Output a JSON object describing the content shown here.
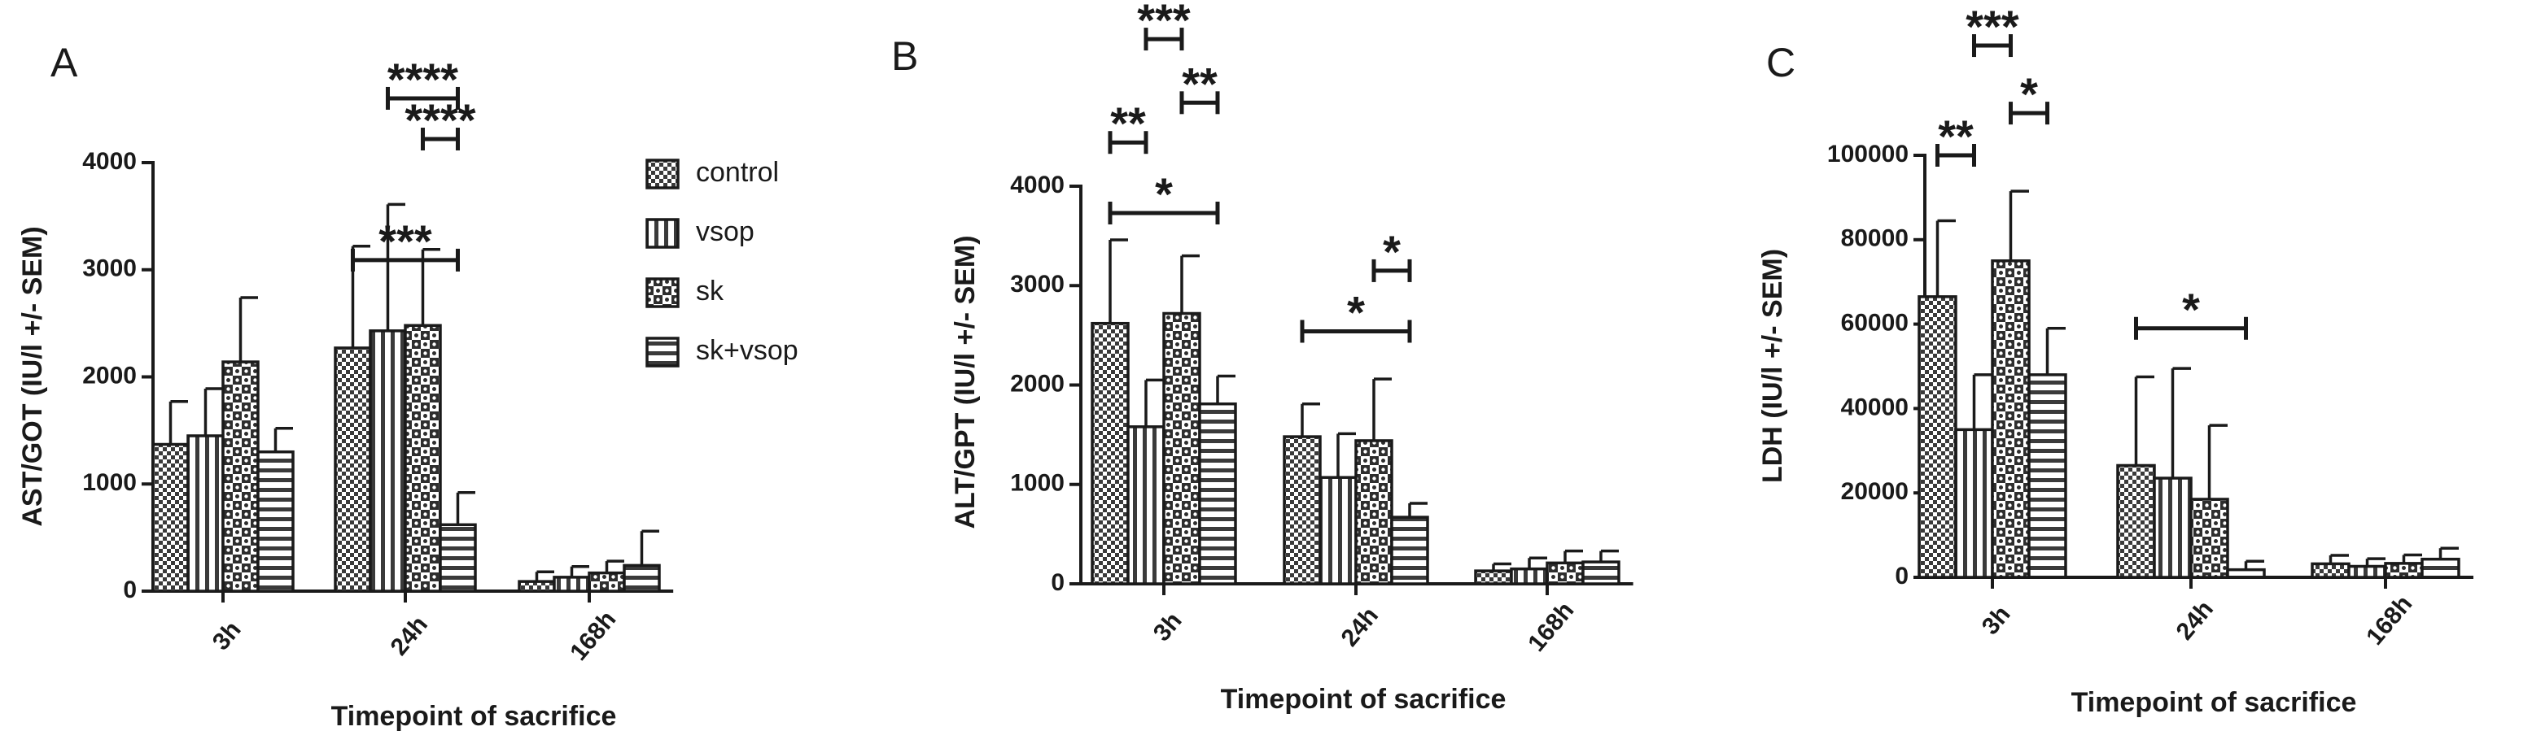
{
  "chart_data": [
    {
      "type": "bar",
      "panel": "A",
      "xlabel": "Timepoint of sacrifice",
      "ylabel": "AST/GOT (IU/l +/- SEM)",
      "ylim": [
        0,
        4000
      ],
      "yticks": [
        0,
        1000,
        2000,
        3000,
        4000
      ],
      "categories": [
        "3h",
        "24h",
        "168h"
      ],
      "series": [
        {
          "name": "control",
          "values": [
            1370,
            2270,
            90
          ],
          "errors": [
            400,
            950,
            90
          ]
        },
        {
          "name": "vsop",
          "values": [
            1450,
            2430,
            130
          ],
          "errors": [
            440,
            1180,
            100
          ]
        },
        {
          "name": "sk",
          "values": [
            2140,
            2480,
            170
          ],
          "errors": [
            600,
            710,
            110
          ]
        },
        {
          "name": "sk+vsop",
          "values": [
            1300,
            620,
            240
          ],
          "errors": [
            220,
            300,
            320
          ]
        }
      ],
      "significance": [
        {
          "from_category": "24h",
          "from_series": 0,
          "to_category": "24h",
          "to_series": 3,
          "label": "***",
          "level": 3090
        },
        {
          "from_category": "24h",
          "from_series": 1,
          "to_category": "24h",
          "to_series": 3,
          "label": "****",
          "level": 4600
        },
        {
          "from_category": "24h",
          "from_series": 2,
          "to_category": "24h",
          "to_series": 3,
          "label": "****",
          "level": 4220
        }
      ],
      "legend": {
        "placement": "top-right",
        "entries": [
          "control",
          "vsop",
          "sk",
          "sk+vsop"
        ]
      }
    },
    {
      "type": "bar",
      "panel": "B",
      "xlabel": "Timepoint of sacrifice",
      "ylabel": "ALT/GPT (IU/l +/- SEM)",
      "ylim": [
        0,
        4000
      ],
      "yticks": [
        0,
        1000,
        2000,
        3000,
        4000
      ],
      "categories": [
        "3h",
        "24h",
        "168h"
      ],
      "series": [
        {
          "name": "control",
          "values": [
            2620,
            1480,
            130
          ],
          "errors": [
            840,
            330,
            70
          ]
        },
        {
          "name": "vsop",
          "values": [
            1580,
            1070,
            150
          ],
          "errors": [
            470,
            440,
            110
          ]
        },
        {
          "name": "sk",
          "values": [
            2720,
            1440,
            210
          ],
          "errors": [
            580,
            620,
            120
          ]
        },
        {
          "name": "sk+vsop",
          "values": [
            1810,
            670,
            220
          ],
          "errors": [
            280,
            140,
            110
          ]
        }
      ],
      "significance": [
        {
          "from_category": "3h",
          "from_series": 0,
          "to_category": "3h",
          "to_series": 1,
          "label": "**",
          "level": 4440
        },
        {
          "from_category": "3h",
          "from_series": 0,
          "to_category": "3h",
          "to_series": 3,
          "label": "*",
          "level": 3730
        },
        {
          "from_category": "3h",
          "from_series": 1,
          "to_category": "3h",
          "to_series": 2,
          "label": "***",
          "level": 5480
        },
        {
          "from_category": "3h",
          "from_series": 2,
          "to_category": "3h",
          "to_series": 3,
          "label": "**",
          "level": 4840
        },
        {
          "from_category": "24h",
          "from_series": 0,
          "to_category": "24h",
          "to_series": 3,
          "label": "*",
          "level": 2540
        },
        {
          "from_category": "24h",
          "from_series": 2,
          "to_category": "24h",
          "to_series": 3,
          "label": "*",
          "level": 3150
        }
      ]
    },
    {
      "type": "bar",
      "panel": "C",
      "xlabel": "Timepoint of sacrifice",
      "ylabel": "LDH (IU/l +/- SEM)",
      "ylim": [
        0,
        100000
      ],
      "yticks": [
        0,
        20000,
        40000,
        60000,
        80000,
        100000
      ],
      "categories": [
        "3h",
        "24h",
        "168h"
      ],
      "series": [
        {
          "name": "control",
          "values": [
            66500,
            26500,
            3200
          ],
          "errors": [
            18000,
            21000,
            2000
          ]
        },
        {
          "name": "vsop",
          "values": [
            35000,
            23500,
            2600
          ],
          "errors": [
            13000,
            26000,
            1800
          ]
        },
        {
          "name": "sk",
          "values": [
            75000,
            18500,
            3300
          ],
          "errors": [
            16500,
            17500,
            2000
          ]
        },
        {
          "name": "sk+vsop",
          "values": [
            48000,
            1800,
            4300
          ],
          "errors": [
            11000,
            2000,
            2600
          ]
        }
      ],
      "significance": [
        {
          "from_category": "3h",
          "from_series": 0,
          "to_category": "3h",
          "to_series": 1,
          "label": "**",
          "level": 100000
        },
        {
          "from_category": "3h",
          "from_series": 1,
          "to_category": "3h",
          "to_series": 2,
          "label": "***",
          "level": 126000
        },
        {
          "from_category": "3h",
          "from_series": 2,
          "to_category": "3h",
          "to_series": 3,
          "label": "*",
          "level": 110000
        },
        {
          "from_category": "24h",
          "from_series": 0,
          "to_category": "24h",
          "to_series": 3,
          "label": "*",
          "level": 59000
        }
      ]
    }
  ]
}
